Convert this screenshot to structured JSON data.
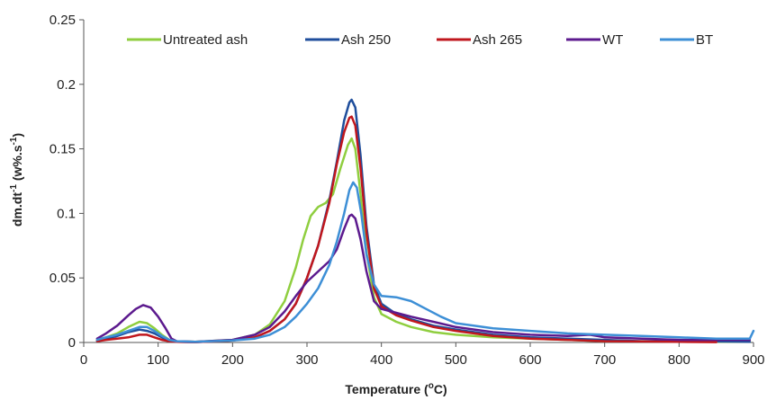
{
  "chart_data": {
    "type": "line",
    "title": "",
    "xlabel": "Temperature (",
    "xlabel_sup": "o",
    "xlabel_tail": "C)",
    "ylabel": "dm.dt",
    "ylabel_sup1": "-1",
    "ylabel_mid": " (w%.s",
    "ylabel_sup2": "-1",
    "ylabel_tail": ")",
    "xlim": [
      0,
      900
    ],
    "ylim": [
      0,
      0.25
    ],
    "x_ticks": [
      0,
      100,
      200,
      300,
      400,
      500,
      600,
      700,
      800,
      900
    ],
    "y_ticks": [
      0,
      0.05,
      0.1,
      0.15,
      0.2,
      0.25
    ],
    "y_tick_labels": [
      "0",
      "0.05",
      "0.1",
      "0.15",
      "0.2",
      "0.25"
    ],
    "grid": false,
    "legend_position": "top",
    "series": [
      {
        "name": "Untreated ash",
        "color": "#8fce3f",
        "points": [
          [
            18,
            0.002
          ],
          [
            30,
            0.004
          ],
          [
            45,
            0.007
          ],
          [
            60,
            0.012
          ],
          [
            75,
            0.016
          ],
          [
            85,
            0.015
          ],
          [
            95,
            0.011
          ],
          [
            105,
            0.006
          ],
          [
            115,
            0.002
          ],
          [
            125,
            0.001
          ],
          [
            150,
            0.0005
          ],
          [
            200,
            0.002
          ],
          [
            230,
            0.006
          ],
          [
            250,
            0.014
          ],
          [
            270,
            0.032
          ],
          [
            285,
            0.058
          ],
          [
            295,
            0.08
          ],
          [
            305,
            0.098
          ],
          [
            315,
            0.105
          ],
          [
            325,
            0.108
          ],
          [
            335,
            0.115
          ],
          [
            345,
            0.135
          ],
          [
            355,
            0.153
          ],
          [
            360,
            0.158
          ],
          [
            365,
            0.15
          ],
          [
            372,
            0.115
          ],
          [
            380,
            0.07
          ],
          [
            390,
            0.035
          ],
          [
            400,
            0.022
          ],
          [
            420,
            0.016
          ],
          [
            440,
            0.012
          ],
          [
            470,
            0.008
          ],
          [
            500,
            0.006
          ],
          [
            550,
            0.004
          ],
          [
            600,
            0.003
          ],
          [
            650,
            0.002
          ],
          [
            700,
            0.001
          ],
          [
            750,
            0.001
          ],
          [
            800,
            0.0008
          ],
          [
            850,
            0.0005
          ],
          [
            895,
            0.0005
          ]
        ]
      },
      {
        "name": "Ash 250",
        "color": "#1f4e9c",
        "points": [
          [
            18,
            0.001
          ],
          [
            30,
            0.003
          ],
          [
            45,
            0.005
          ],
          [
            60,
            0.008
          ],
          [
            75,
            0.01
          ],
          [
            85,
            0.009
          ],
          [
            95,
            0.007
          ],
          [
            105,
            0.004
          ],
          [
            115,
            0.001
          ],
          [
            125,
            0.0005
          ],
          [
            150,
            0.0003
          ],
          [
            200,
            0.0015
          ],
          [
            230,
            0.004
          ],
          [
            250,
            0.009
          ],
          [
            270,
            0.018
          ],
          [
            285,
            0.03
          ],
          [
            300,
            0.05
          ],
          [
            315,
            0.075
          ],
          [
            330,
            0.11
          ],
          [
            340,
            0.14
          ],
          [
            350,
            0.172
          ],
          [
            357,
            0.186
          ],
          [
            360,
            0.188
          ],
          [
            365,
            0.182
          ],
          [
            372,
            0.145
          ],
          [
            380,
            0.09
          ],
          [
            390,
            0.045
          ],
          [
            400,
            0.03
          ],
          [
            420,
            0.022
          ],
          [
            440,
            0.018
          ],
          [
            470,
            0.013
          ],
          [
            500,
            0.01
          ],
          [
            550,
            0.006
          ],
          [
            600,
            0.004
          ],
          [
            650,
            0.003
          ],
          [
            700,
            0.002
          ],
          [
            750,
            0.001
          ],
          [
            800,
            0.001
          ],
          [
            850,
            0.0008
          ],
          [
            895,
            0.0005
          ]
        ]
      },
      {
        "name": "Ash 265",
        "color": "#c0171d",
        "points": [
          [
            18,
            0.001
          ],
          [
            30,
            0.002
          ],
          [
            45,
            0.003
          ],
          [
            60,
            0.004
          ],
          [
            75,
            0.006
          ],
          [
            85,
            0.006
          ],
          [
            95,
            0.004
          ],
          [
            105,
            0.002
          ],
          [
            115,
            0.001
          ],
          [
            125,
            0.0005
          ],
          [
            150,
            0.0003
          ],
          [
            200,
            0.0015
          ],
          [
            230,
            0.004
          ],
          [
            250,
            0.009
          ],
          [
            270,
            0.018
          ],
          [
            285,
            0.03
          ],
          [
            300,
            0.05
          ],
          [
            315,
            0.075
          ],
          [
            330,
            0.108
          ],
          [
            340,
            0.138
          ],
          [
            350,
            0.163
          ],
          [
            357,
            0.174
          ],
          [
            360,
            0.175
          ],
          [
            365,
            0.168
          ],
          [
            372,
            0.135
          ],
          [
            380,
            0.085
          ],
          [
            390,
            0.042
          ],
          [
            400,
            0.028
          ],
          [
            420,
            0.021
          ],
          [
            440,
            0.017
          ],
          [
            470,
            0.012
          ],
          [
            500,
            0.009
          ],
          [
            550,
            0.005
          ],
          [
            600,
            0.003
          ],
          [
            650,
            0.002
          ],
          [
            700,
            0.001
          ],
          [
            750,
            0.0008
          ],
          [
            800,
            0.0005
          ],
          [
            850,
            0.0003
          ]
        ]
      },
      {
        "name": "WT",
        "color": "#5c1a8e",
        "points": [
          [
            18,
            0.003
          ],
          [
            30,
            0.007
          ],
          [
            45,
            0.013
          ],
          [
            60,
            0.021
          ],
          [
            70,
            0.026
          ],
          [
            80,
            0.029
          ],
          [
            90,
            0.027
          ],
          [
            100,
            0.02
          ],
          [
            110,
            0.011
          ],
          [
            118,
            0.003
          ],
          [
            125,
            0.001
          ],
          [
            150,
            0.0005
          ],
          [
            200,
            0.002
          ],
          [
            230,
            0.006
          ],
          [
            250,
            0.012
          ],
          [
            270,
            0.024
          ],
          [
            285,
            0.036
          ],
          [
            300,
            0.047
          ],
          [
            315,
            0.055
          ],
          [
            330,
            0.063
          ],
          [
            340,
            0.072
          ],
          [
            350,
            0.088
          ],
          [
            357,
            0.098
          ],
          [
            360,
            0.099
          ],
          [
            365,
            0.096
          ],
          [
            372,
            0.08
          ],
          [
            380,
            0.055
          ],
          [
            390,
            0.032
          ],
          [
            400,
            0.026
          ],
          [
            420,
            0.023
          ],
          [
            440,
            0.02
          ],
          [
            470,
            0.016
          ],
          [
            500,
            0.012
          ],
          [
            550,
            0.008
          ],
          [
            600,
            0.006
          ],
          [
            650,
            0.005
          ],
          [
            680,
            0.006
          ],
          [
            690,
            0.005
          ],
          [
            700,
            0.004
          ],
          [
            750,
            0.003
          ],
          [
            800,
            0.002
          ],
          [
            850,
            0.002
          ],
          [
            895,
            0.002
          ]
        ]
      },
      {
        "name": "BT",
        "color": "#3d8fd6",
        "points": [
          [
            18,
            0.002
          ],
          [
            30,
            0.004
          ],
          [
            45,
            0.006
          ],
          [
            60,
            0.009
          ],
          [
            75,
            0.012
          ],
          [
            85,
            0.012
          ],
          [
            95,
            0.009
          ],
          [
            105,
            0.005
          ],
          [
            115,
            0.002
          ],
          [
            125,
            0.001
          ],
          [
            150,
            0.0005
          ],
          [
            200,
            0.0015
          ],
          [
            230,
            0.003
          ],
          [
            250,
            0.006
          ],
          [
            270,
            0.012
          ],
          [
            285,
            0.02
          ],
          [
            300,
            0.03
          ],
          [
            315,
            0.042
          ],
          [
            330,
            0.06
          ],
          [
            340,
            0.078
          ],
          [
            350,
            0.1
          ],
          [
            357,
            0.118
          ],
          [
            362,
            0.124
          ],
          [
            367,
            0.12
          ],
          [
            373,
            0.1
          ],
          [
            380,
            0.068
          ],
          [
            390,
            0.045
          ],
          [
            400,
            0.036
          ],
          [
            420,
            0.035
          ],
          [
            440,
            0.032
          ],
          [
            460,
            0.026
          ],
          [
            480,
            0.02
          ],
          [
            500,
            0.015
          ],
          [
            550,
            0.011
          ],
          [
            600,
            0.009
          ],
          [
            650,
            0.007
          ],
          [
            700,
            0.006
          ],
          [
            750,
            0.005
          ],
          [
            800,
            0.004
          ],
          [
            850,
            0.003
          ],
          [
            895,
            0.003
          ],
          [
            900,
            0.009
          ]
        ]
      }
    ]
  }
}
